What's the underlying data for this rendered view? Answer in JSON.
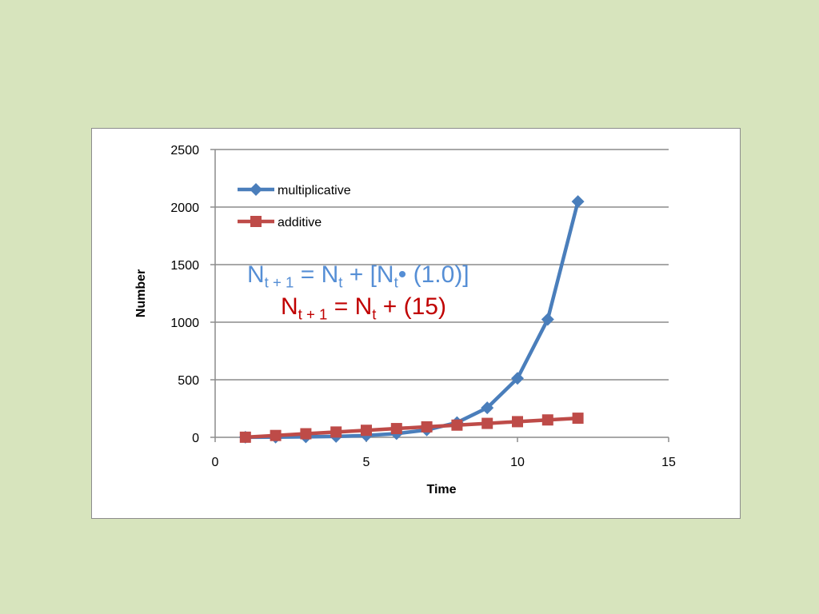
{
  "chart_data": {
    "type": "line",
    "xlabel": "Time",
    "ylabel": "Number",
    "xlim": [
      0,
      15
    ],
    "ylim": [
      0,
      2500
    ],
    "x_ticks": [
      "0",
      "5",
      "10",
      "15"
    ],
    "y_ticks": [
      "0",
      "500",
      "1000",
      "1500",
      "2000",
      "2500"
    ],
    "grid": "horizontal",
    "legend_position": "top-left",
    "series": [
      {
        "name": "multiplicative",
        "color": "#4a7ebb",
        "marker": "diamond",
        "x": [
          1,
          2,
          3,
          4,
          5,
          6,
          7,
          8,
          9,
          10,
          11,
          12
        ],
        "y": [
          1,
          2,
          4,
          8,
          16,
          32,
          64,
          128,
          256,
          512,
          1024,
          2048
        ]
      },
      {
        "name": "additive",
        "color": "#be4b48",
        "marker": "square",
        "x": [
          1,
          2,
          3,
          4,
          5,
          6,
          7,
          8,
          9,
          10,
          11,
          12
        ],
        "y": [
          1,
          16,
          31,
          46,
          61,
          76,
          91,
          106,
          121,
          136,
          151,
          166
        ]
      }
    ],
    "annotations": {
      "multiplicative": {
        "color": "#558ed5",
        "a": "N",
        "a_sub": "t + 1",
        "b": " = N",
        "b_sub": "t",
        "c": " + [N",
        "c_sub": "t",
        "d": "• (1.0)]"
      },
      "additive": {
        "color": "#c00000",
        "a": "N",
        "a_sub": "t + 1",
        "b": " = N",
        "b_sub": "t",
        "c": " + (15)"
      }
    }
  }
}
